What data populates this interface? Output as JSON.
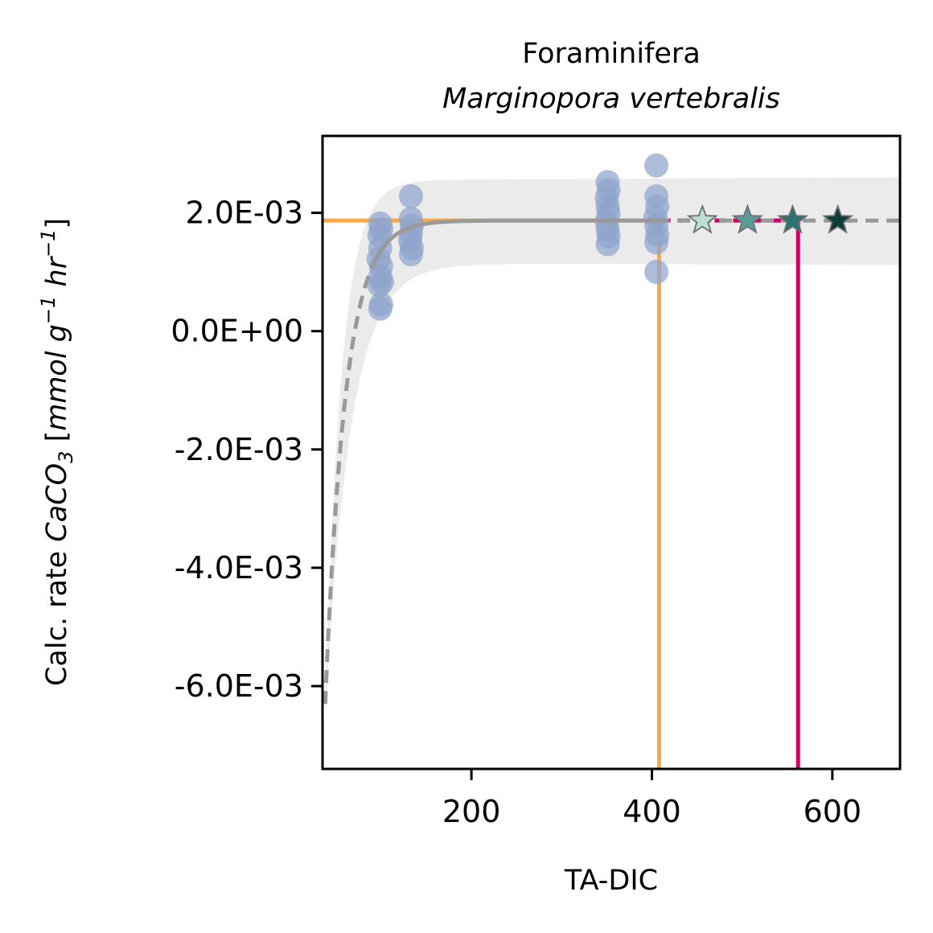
{
  "chart_data": {
    "type": "scatter",
    "title": "Foraminifera",
    "subtitle": "Marginopora vertebralis",
    "xlabel": "TA-DIC",
    "ylabel_parts": {
      "prefix": "Calc. rate ",
      "ca_co": "CaCO",
      "sub3": "3",
      "bracket_open": " [",
      "mmol_g": "mmol g",
      "exp1": "−1",
      "hr": " hr",
      "exp2": "−1",
      "bracket_close": "]"
    },
    "xlim": [
      35,
      675
    ],
    "ylim": [
      -0.0074,
      0.0033
    ],
    "xticks": [
      {
        "value": 200,
        "label": "200"
      },
      {
        "value": 400,
        "label": "400"
      },
      {
        "value": 600,
        "label": "600"
      }
    ],
    "yticks": [
      {
        "value": 0.002,
        "label": "2.0E-03"
      },
      {
        "value": 0.0,
        "label": "0.0E+00"
      },
      {
        "value": -0.002,
        "label": "-2.0E-03"
      },
      {
        "value": -0.004,
        "label": "-4.0E-03"
      },
      {
        "value": -0.006,
        "label": "-6.0E-03"
      }
    ],
    "observations": {
      "color": "#8fa3cc",
      "points": [
        {
          "x": 99,
          "y": 0.00182
        },
        {
          "x": 100,
          "y": 0.00172
        },
        {
          "x": 98,
          "y": 0.00162
        },
        {
          "x": 99,
          "y": 0.0014
        },
        {
          "x": 97,
          "y": 0.00122
        },
        {
          "x": 100,
          "y": 0.0011
        },
        {
          "x": 99,
          "y": 0.00092
        },
        {
          "x": 98,
          "y": 0.00078
        },
        {
          "x": 101,
          "y": 0.00083
        },
        {
          "x": 100,
          "y": 0.00045
        },
        {
          "x": 99,
          "y": 0.00038
        },
        {
          "x": 133,
          "y": 0.00228
        },
        {
          "x": 133,
          "y": 0.0019
        },
        {
          "x": 134,
          "y": 0.00178
        },
        {
          "x": 133,
          "y": 0.00165
        },
        {
          "x": 132,
          "y": 0.00153
        },
        {
          "x": 134,
          "y": 0.0014
        },
        {
          "x": 133,
          "y": 0.0013
        },
        {
          "x": 351,
          "y": 0.00252
        },
        {
          "x": 352,
          "y": 0.00238
        },
        {
          "x": 350,
          "y": 0.00225
        },
        {
          "x": 351,
          "y": 0.0021
        },
        {
          "x": 352,
          "y": 0.00198
        },
        {
          "x": 350,
          "y": 0.00185
        },
        {
          "x": 351,
          "y": 0.00172
        },
        {
          "x": 352,
          "y": 0.0016
        },
        {
          "x": 351,
          "y": 0.00147
        },
        {
          "x": 405,
          "y": 0.0028
        },
        {
          "x": 405,
          "y": 0.00228
        },
        {
          "x": 406,
          "y": 0.0021
        },
        {
          "x": 404,
          "y": 0.00193
        },
        {
          "x": 405,
          "y": 0.00178
        },
        {
          "x": 406,
          "y": 0.00163
        },
        {
          "x": 405,
          "y": 0.0015
        },
        {
          "x": 405,
          "y": 0.001
        }
      ]
    },
    "fit": {
      "color": "#999999",
      "plateau": 0.00187,
      "x0": 38,
      "y_at_x0": -0.0063,
      "rate": 0.045,
      "solid_range": [
        93,
        405
      ]
    },
    "confidence_band": {
      "color": "#ebebeb",
      "upper_plateau": 0.00255,
      "lower_plateau": 0.00115,
      "x_end_upper": 0.0026,
      "x_end_lower": 0.00112
    },
    "threshold_orange": {
      "color": "#f7a94b",
      "x": 408,
      "y": 0.00187
    },
    "threshold_magenta": {
      "color": "#cc0066",
      "x": 562,
      "y": 0.00187,
      "x_start": 408
    },
    "stars": [
      {
        "x": 456,
        "y": 0.00187,
        "color": "#b8e0d6"
      },
      {
        "x": 506,
        "y": 0.00187,
        "color": "#5a9c98"
      },
      {
        "x": 556,
        "y": 0.00187,
        "color": "#2a7370"
      },
      {
        "x": 606,
        "y": 0.00187,
        "color": "#0d3b35"
      }
    ]
  }
}
